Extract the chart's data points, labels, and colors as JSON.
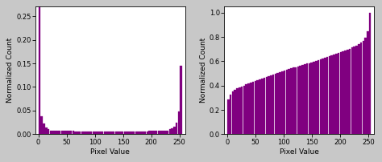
{
  "bar_color": "#800080",
  "bar_edge_color": "#800080",
  "background_color": "#c8c8c8",
  "plot_bg_color": "#ffffff",
  "xlabel": "Pixel Value",
  "ylabel": "Normalized Count",
  "hist_xlim": [
    -5,
    260
  ],
  "cum_xlim": [
    -5,
    260
  ],
  "hist_ylim": [
    0,
    0.27
  ],
  "cum_ylim": [
    0,
    1.05
  ],
  "hist_yticks": [
    0.0,
    0.05,
    0.1,
    0.15,
    0.2,
    0.25
  ],
  "cum_yticks": [
    0,
    0.2,
    0.4,
    0.6,
    0.8,
    1.0
  ],
  "xticks": [
    0,
    50,
    100,
    150,
    200,
    250
  ],
  "n_bins": 64,
  "font_size": 6.5,
  "tick_font_size": 6.0,
  "figsize": [
    4.74,
    2.02
  ],
  "dpi": 100
}
